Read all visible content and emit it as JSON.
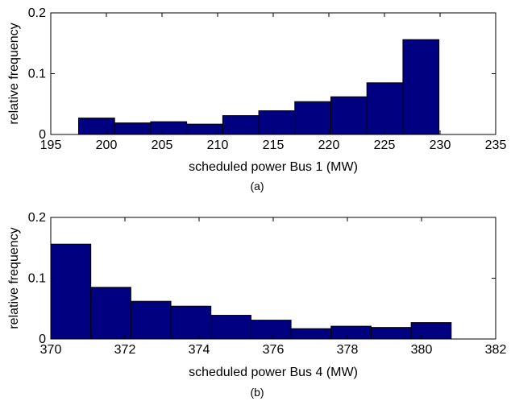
{
  "colors": {
    "bar_fill": "#000080",
    "bar_edge": "#000000",
    "axes": "#000000",
    "background": "#ffffff"
  },
  "chart_data": [
    {
      "type": "bar",
      "caption": "(a)",
      "xlabel": "scheduled power Bus 1 (MW)",
      "ylabel": "relative frequency",
      "xlim": [
        195,
        235
      ],
      "ylim": [
        0,
        0.2
      ],
      "xticks": [
        "195",
        "200",
        "205",
        "210",
        "215",
        "220",
        "225",
        "230",
        "235"
      ],
      "yticks": [
        "0",
        "0.1",
        "0.2"
      ],
      "bin_width": 3.24,
      "bin_centers": [
        199.12,
        202.36,
        205.6,
        208.84,
        212.08,
        215.32,
        218.56,
        221.8,
        225.04,
        228.28
      ],
      "values": [
        0.027,
        0.019,
        0.021,
        0.017,
        0.031,
        0.039,
        0.054,
        0.062,
        0.085,
        0.156
      ]
    },
    {
      "type": "bar",
      "caption": "(b)",
      "xlabel": "scheduled power Bus 4 (MW)",
      "ylabel": "relative frequency",
      "xlim": [
        370,
        382
      ],
      "ylim": [
        0,
        0.2
      ],
      "xticks": [
        "370",
        "372",
        "374",
        "376",
        "378",
        "380",
        "382"
      ],
      "yticks": [
        "0",
        "0.1",
        "0.2"
      ],
      "bin_width": 1.08,
      "bin_centers": [
        370.54,
        371.62,
        372.7,
        373.78,
        374.86,
        375.94,
        377.02,
        378.1,
        379.18,
        380.26
      ],
      "values": [
        0.156,
        0.085,
        0.062,
        0.054,
        0.039,
        0.031,
        0.017,
        0.021,
        0.019,
        0.027
      ]
    }
  ]
}
